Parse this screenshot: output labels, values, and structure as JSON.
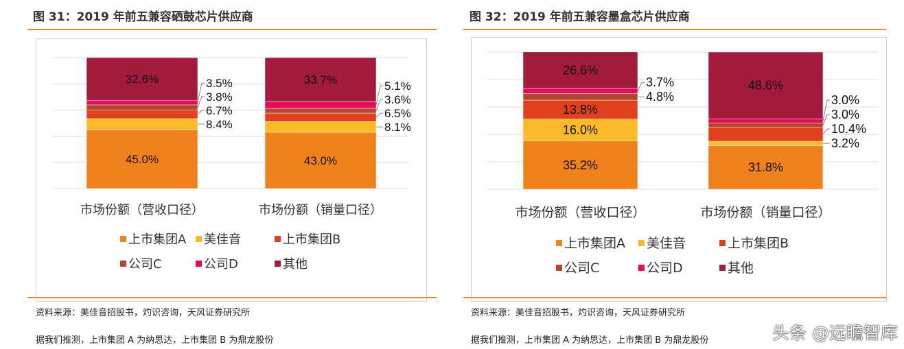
{
  "chart_data": [
    {
      "type": "bar",
      "stacked": true,
      "title": "图 31：2019 年前五兼容硒鼓芯片供应商",
      "categories": [
        "市场份额（营收口径）",
        "市场份额（销量口径）"
      ],
      "ylim": [
        0,
        100
      ],
      "grid": true,
      "legend": "bottom",
      "series": [
        {
          "name": "上市集团A",
          "color": "#F0821E",
          "values": [
            45.0,
            43.0
          ]
        },
        {
          "name": "美佳音",
          "color": "#FBBA2A",
          "values": [
            8.4,
            8.1
          ]
        },
        {
          "name": "上市集团B",
          "color": "#E0401E",
          "values": [
            6.7,
            6.5
          ]
        },
        {
          "name": "公司C",
          "color": "#B5452F",
          "values": [
            3.8,
            3.6
          ]
        },
        {
          "name": "公司D",
          "color": "#E8095A",
          "values": [
            3.5,
            5.1
          ]
        },
        {
          "name": "其他",
          "color": "#A31B3C",
          "values": [
            32.6,
            33.7
          ]
        }
      ]
    },
    {
      "type": "bar",
      "stacked": true,
      "title": "图 32：2019 年前五兼容墨盒芯片供应商",
      "categories": [
        "市场份额（营收口径）",
        "市场份额（销量口径）"
      ],
      "ylim": [
        0,
        100
      ],
      "grid": true,
      "legend": "bottom",
      "series": [
        {
          "name": "上市集团A",
          "color": "#F0821E",
          "values": [
            35.2,
            31.8
          ]
        },
        {
          "name": "美佳音",
          "color": "#FBBA2A",
          "values": [
            16.0,
            3.2
          ]
        },
        {
          "name": "上市集团B",
          "color": "#E0401E",
          "values": [
            13.8,
            10.4
          ]
        },
        {
          "name": "公司C",
          "color": "#B5452F",
          "values": [
            4.8,
            3.0
          ]
        },
        {
          "name": "公司D",
          "color": "#E8095A",
          "values": [
            3.7,
            3.0
          ]
        },
        {
          "name": "其他",
          "color": "#A31B3C",
          "values": [
            26.6,
            48.6
          ]
        }
      ]
    }
  ],
  "sources": [
    {
      "line1": "资料来源：美佳音招股书，灼识咨询，天风证券研究所",
      "line2": "据我们推测，上市集团 A 为纳思达，上市集团 B 为鼎龙股份"
    },
    {
      "line1": "资料来源：美佳音招股书，灼识咨询，天风证券研究所",
      "line2": "据我们推测，上市集团 A 为纳思达，上市集团 B 为鼎龙股份"
    }
  ],
  "watermark": "头条 @远瞻智库"
}
